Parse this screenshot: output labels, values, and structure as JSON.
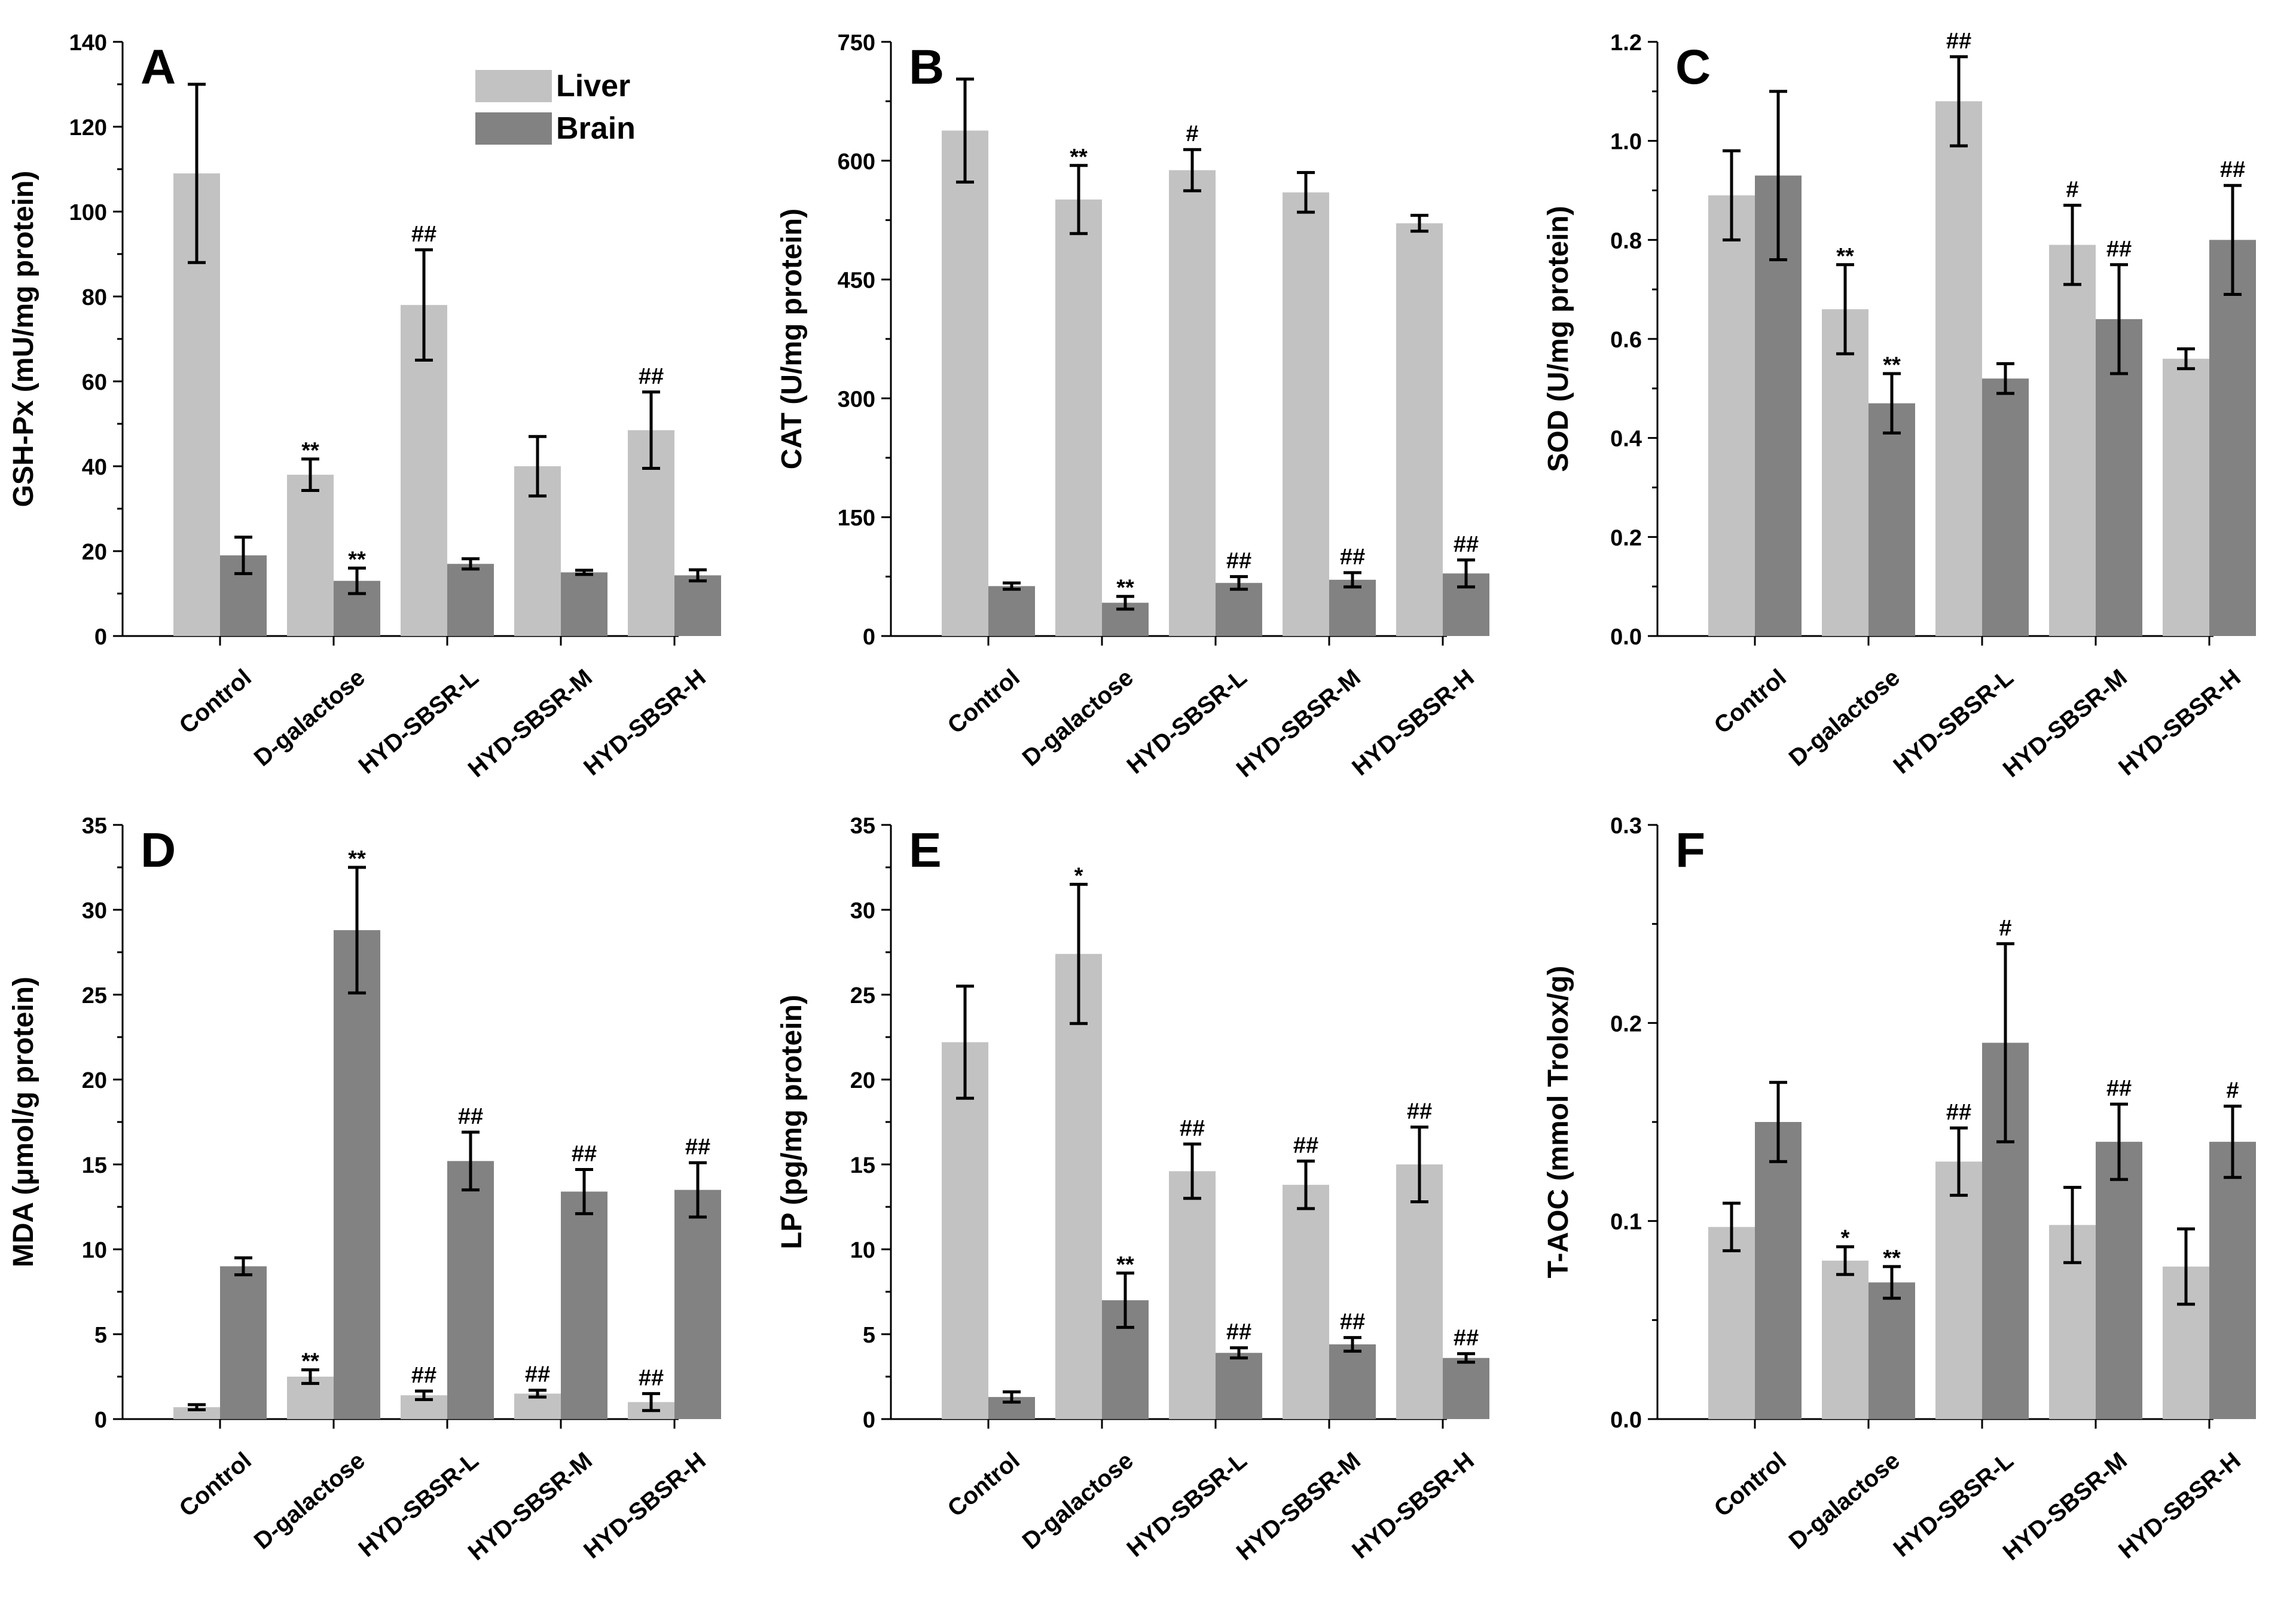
{
  "colors": {
    "liver": "#c2c2c2",
    "brain": "#828282",
    "error_bar": "#000000",
    "axis": "#000000"
  },
  "legend": {
    "entries": [
      "Liver",
      "Brain"
    ],
    "placement": "top-right of panel A"
  },
  "chart_data": [
    {
      "panel": "A",
      "type": "bar",
      "ylabel": "GSH-Px (mU/mg protein)",
      "categories": [
        "Control",
        "D-galactose",
        "HYD-SBSR-L",
        "HYD-SBSR-M",
        "HYD-SBSR-H"
      ],
      "ylim": [
        0,
        140
      ],
      "yticks": [
        0,
        20,
        40,
        60,
        80,
        100,
        120,
        140
      ],
      "tick_labels": [
        "0",
        "20",
        "40",
        "60",
        "80",
        "100",
        "120",
        "140"
      ],
      "series": [
        {
          "name": "Liver",
          "values": [
            109,
            38,
            78,
            40,
            48.5
          ],
          "errors": [
            21,
            3.7,
            13,
            7,
            9
          ],
          "annotations": [
            "",
            "**",
            "##",
            "",
            "##"
          ]
        },
        {
          "name": "Brain",
          "values": [
            19,
            13,
            17,
            15,
            14.3
          ],
          "errors": [
            4.3,
            3,
            1.2,
            0.5,
            1.3
          ],
          "annotations": [
            "",
            "**",
            "",
            "",
            ""
          ]
        }
      ]
    },
    {
      "panel": "B",
      "type": "bar",
      "ylabel": "CAT (U/mg protein)",
      "categories": [
        "Control",
        "D-galactose",
        "HYD-SBSR-L",
        "HYD-SBSR-M",
        "HYD-SBSR-H"
      ],
      "ylim": [
        0,
        750
      ],
      "yticks": [
        0,
        150,
        300,
        450,
        600,
        750
      ],
      "tick_labels": [
        "0",
        "150",
        "300",
        "450",
        "600",
        "750"
      ],
      "series": [
        {
          "name": "Liver",
          "values": [
            638,
            551,
            588,
            560,
            521
          ],
          "errors": [
            65,
            43,
            26,
            25,
            10
          ],
          "annotations": [
            "",
            "**",
            "#",
            "",
            ""
          ]
        },
        {
          "name": "Brain",
          "values": [
            63,
            42,
            67,
            71,
            79
          ],
          "errors": [
            4,
            8,
            8,
            9,
            17
          ],
          "annotations": [
            "",
            "**",
            "##",
            "##",
            "##"
          ]
        }
      ]
    },
    {
      "panel": "C",
      "type": "bar",
      "ylabel": "SOD (U/mg protein)",
      "categories": [
        "Control",
        "D-galactose",
        "HYD-SBSR-L",
        "HYD-SBSR-M",
        "HYD-SBSR-H"
      ],
      "ylim": [
        0,
        1.2
      ],
      "yticks": [
        0,
        0.2,
        0.4,
        0.6,
        0.8,
        1.0,
        1.2
      ],
      "tick_labels": [
        "0.0",
        "0.2",
        "0.4",
        "0.6",
        "0.8",
        "1.0",
        "1.2"
      ],
      "series": [
        {
          "name": "Liver",
          "values": [
            0.89,
            0.66,
            1.08,
            0.79,
            0.56
          ],
          "errors": [
            0.09,
            0.09,
            0.09,
            0.08,
            0.02
          ],
          "annotations": [
            "",
            "**",
            "##",
            "#",
            ""
          ]
        },
        {
          "name": "Brain",
          "values": [
            0.93,
            0.47,
            0.52,
            0.64,
            0.8
          ],
          "errors": [
            0.17,
            0.06,
            0.03,
            0.11,
            0.11
          ],
          "annotations": [
            "",
            "**",
            "",
            "##",
            "##"
          ]
        }
      ]
    },
    {
      "panel": "D",
      "type": "bar",
      "ylabel": "MDA (μmol/g protein)",
      "categories": [
        "Control",
        "D-galactose",
        "HYD-SBSR-L",
        "HYD-SBSR-M",
        "HYD-SBSR-H"
      ],
      "ylim": [
        0,
        35
      ],
      "yticks": [
        0,
        5,
        10,
        15,
        20,
        25,
        30,
        35
      ],
      "tick_labels": [
        "0",
        "5",
        "10",
        "15",
        "20",
        "25",
        "30",
        "35"
      ],
      "series": [
        {
          "name": "Liver",
          "values": [
            0.7,
            2.5,
            1.4,
            1.5,
            1.0
          ],
          "errors": [
            0.15,
            0.4,
            0.25,
            0.2,
            0.5
          ],
          "annotations": [
            "",
            "**",
            "##",
            "##",
            "##"
          ]
        },
        {
          "name": "Brain",
          "values": [
            9.0,
            28.8,
            15.2,
            13.4,
            13.5
          ],
          "errors": [
            0.5,
            3.7,
            1.7,
            1.3,
            1.6
          ],
          "annotations": [
            "",
            "**",
            "##",
            "##",
            "##"
          ]
        }
      ]
    },
    {
      "panel": "E",
      "type": "bar",
      "ylabel": "LP (pg/mg protein)",
      "categories": [
        "Control",
        "D-galactose",
        "HYD-SBSR-L",
        "HYD-SBSR-M",
        "HYD-SBSR-H"
      ],
      "ylim": [
        0,
        35
      ],
      "yticks": [
        0,
        5,
        10,
        15,
        20,
        25,
        30,
        35
      ],
      "tick_labels": [
        "0",
        "5",
        "10",
        "15",
        "20",
        "25",
        "30",
        "35"
      ],
      "series": [
        {
          "name": "Liver",
          "values": [
            22.2,
            27.4,
            14.6,
            13.8,
            15.0
          ],
          "errors": [
            3.3,
            4.1,
            1.6,
            1.4,
            2.2
          ],
          "annotations": [
            "",
            "*",
            "##",
            "##",
            "##"
          ]
        },
        {
          "name": "Brain",
          "values": [
            1.3,
            7.0,
            3.9,
            4.4,
            3.6
          ],
          "errors": [
            0.3,
            1.6,
            0.3,
            0.4,
            0.25
          ],
          "annotations": [
            "",
            "**",
            "##",
            "##",
            "##"
          ]
        }
      ]
    },
    {
      "panel": "F",
      "type": "bar",
      "ylabel": "T-AOC (mmol Trolox/g)",
      "categories": [
        "Control",
        "D-galactose",
        "HYD-SBSR-L",
        "HYD-SBSR-M",
        "HYD-SBSR-H"
      ],
      "ylim": [
        0,
        0.3
      ],
      "yticks": [
        0,
        0.1,
        0.2,
        0.3
      ],
      "tick_labels": [
        "0.0",
        "0.1",
        "0.2",
        "0.3"
      ],
      "series": [
        {
          "name": "Liver",
          "values": [
            0.097,
            0.08,
            0.13,
            0.098,
            0.077
          ],
          "errors": [
            0.012,
            0.007,
            0.017,
            0.019,
            0.019
          ],
          "annotations": [
            "",
            "*",
            "##",
            "",
            ""
          ]
        },
        {
          "name": "Brain",
          "values": [
            0.15,
            0.069,
            0.19,
            0.14,
            0.14
          ],
          "errors": [
            0.02,
            0.008,
            0.05,
            0.019,
            0.018
          ],
          "annotations": [
            "",
            "**",
            "#",
            "##",
            "#"
          ]
        }
      ]
    }
  ]
}
